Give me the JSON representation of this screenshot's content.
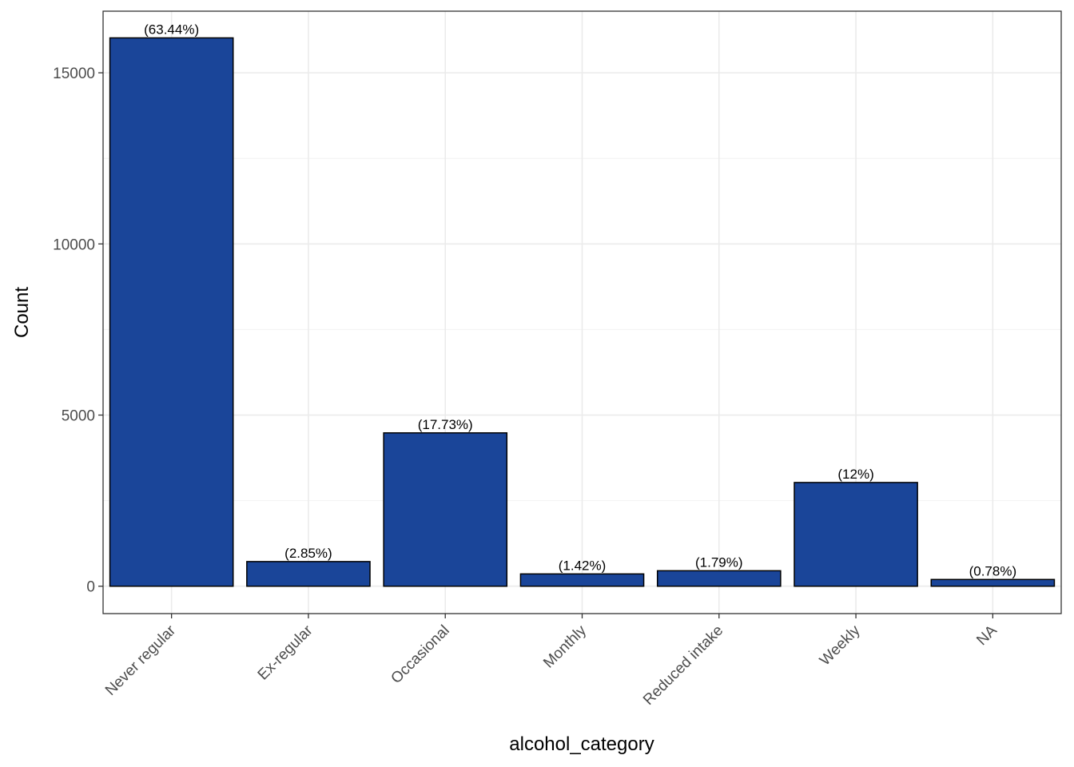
{
  "chart_data": {
    "type": "bar",
    "categories": [
      "Never regular",
      "Ex-regular",
      "Occasional",
      "Monthly",
      "Reduced intake",
      "Weekly",
      "NA"
    ],
    "values": [
      16020,
      720,
      4480,
      359,
      452,
      3030,
      197
    ],
    "labels": [
      "(63.44%)",
      "(2.85%)",
      "(17.73%)",
      "(1.42%)",
      "(1.79%)",
      "(12%)",
      "(0.78%)"
    ],
    "xlabel": "alcohol_category",
    "ylabel": "Count",
    "yticks": [
      0,
      5000,
      10000,
      15000
    ],
    "ylim": [
      -800,
      16800
    ],
    "grid": true,
    "bar_color": "#1a4599",
    "bar_edge_color": "#000000"
  }
}
